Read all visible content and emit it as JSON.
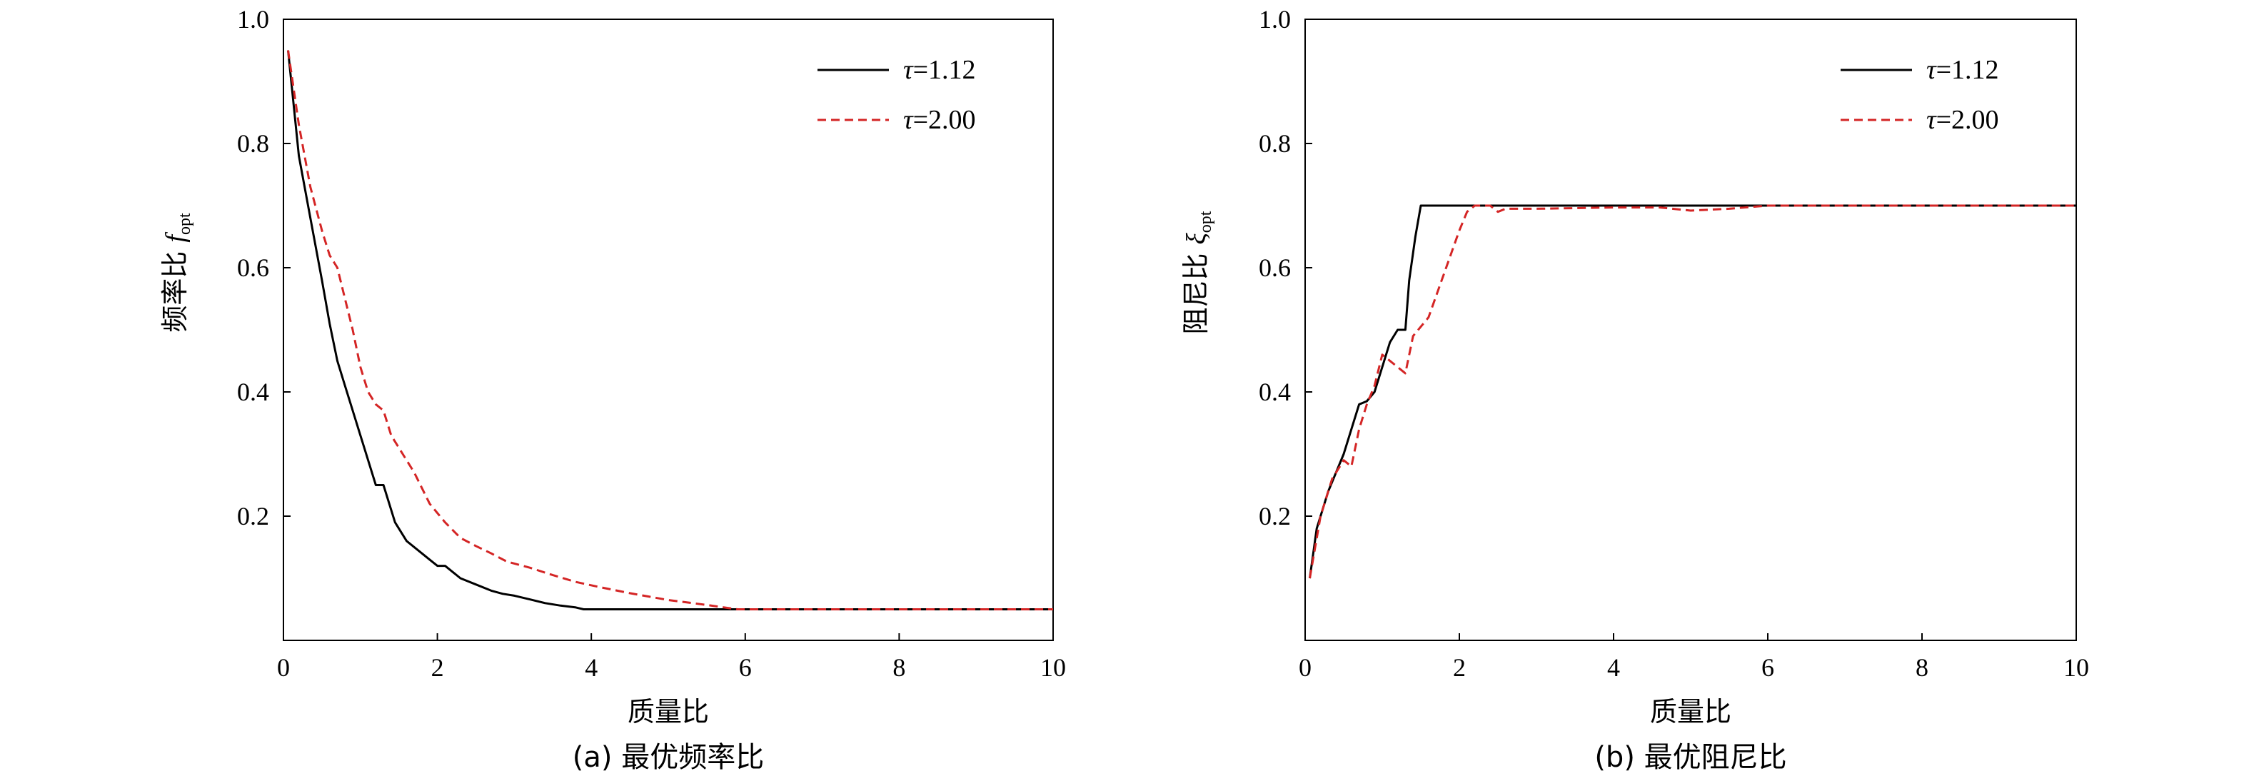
{
  "chart_data": [
    {
      "type": "line",
      "caption": "(a) 最优频率比",
      "xlabel": "质量比",
      "ylabel_text": "频率比",
      "ylabel_symbol": "f",
      "ylabel_subscript": "opt",
      "xlim": [
        0,
        10
      ],
      "ylim": [
        0,
        1.0
      ],
      "xticks": [
        "0",
        "2",
        "4",
        "6",
        "8",
        "10"
      ],
      "yticks": [
        "0.2",
        "0.4",
        "0.6",
        "0.8",
        "1.0"
      ],
      "legend_position": "top-right",
      "series": [
        {
          "name": "τ=1.12",
          "color": "#000000",
          "style": "solid",
          "x": [
            0.06,
            0.2,
            0.35,
            0.5,
            0.6,
            0.7,
            0.8,
            0.9,
            1.0,
            1.1,
            1.2,
            1.3,
            1.45,
            1.6,
            1.8,
            1.9,
            2.0,
            2.1,
            2.3,
            2.5,
            2.7,
            2.85,
            3.0,
            3.2,
            3.4,
            3.6,
            3.8,
            3.9,
            4.2,
            6.0,
            8.0,
            10.0
          ],
          "y": [
            0.95,
            0.78,
            0.68,
            0.58,
            0.51,
            0.45,
            0.41,
            0.37,
            0.33,
            0.29,
            0.25,
            0.25,
            0.19,
            0.16,
            0.14,
            0.13,
            0.12,
            0.12,
            0.1,
            0.09,
            0.08,
            0.075,
            0.072,
            0.066,
            0.06,
            0.056,
            0.053,
            0.05,
            0.05,
            0.05,
            0.05,
            0.05
          ]
        },
        {
          "name": "τ=2.00",
          "color": "#d42525",
          "style": "dashed",
          "x": [
            0.06,
            0.2,
            0.35,
            0.5,
            0.6,
            0.7,
            0.8,
            0.9,
            1.0,
            1.1,
            1.2,
            1.3,
            1.4,
            1.55,
            1.7,
            1.9,
            2.1,
            2.3,
            2.5,
            2.7,
            2.9,
            3.2,
            3.5,
            3.8,
            4.1,
            4.5,
            5.0,
            5.5,
            5.9,
            7.0,
            8.0,
            10.0
          ],
          "y": [
            0.95,
            0.83,
            0.73,
            0.66,
            0.62,
            0.6,
            0.55,
            0.5,
            0.44,
            0.4,
            0.38,
            0.37,
            0.33,
            0.3,
            0.27,
            0.22,
            0.19,
            0.165,
            0.152,
            0.14,
            0.127,
            0.117,
            0.105,
            0.094,
            0.086,
            0.076,
            0.065,
            0.057,
            0.05,
            0.05,
            0.05,
            0.05
          ]
        }
      ]
    },
    {
      "type": "line",
      "caption": "(b) 最优阻尼比",
      "xlabel": "质量比",
      "ylabel_text": "阻尼比",
      "ylabel_symbol": "ξ",
      "ylabel_subscript": "opt",
      "xlim": [
        0,
        10
      ],
      "ylim": [
        0,
        1.0
      ],
      "xticks": [
        "0",
        "2",
        "4",
        "6",
        "8",
        "10"
      ],
      "yticks": [
        "0.2",
        "0.4",
        "0.6",
        "0.8",
        "1.0"
      ],
      "legend_position": "top-right",
      "series": [
        {
          "name": "τ=1.12",
          "color": "#000000",
          "style": "solid",
          "x": [
            0.06,
            0.15,
            0.3,
            0.4,
            0.5,
            0.6,
            0.7,
            0.8,
            0.9,
            1.0,
            1.1,
            1.2,
            1.3,
            1.35,
            1.43,
            1.5,
            2.0,
            4.0,
            6.0,
            8.0,
            10.0
          ],
          "y": [
            0.1,
            0.18,
            0.24,
            0.27,
            0.3,
            0.34,
            0.38,
            0.385,
            0.4,
            0.44,
            0.48,
            0.5,
            0.5,
            0.58,
            0.65,
            0.7,
            0.7,
            0.7,
            0.7,
            0.7,
            0.7
          ]
        },
        {
          "name": "τ=2.00",
          "color": "#d42525",
          "style": "dashed",
          "x": [
            0.06,
            0.2,
            0.35,
            0.5,
            0.6,
            0.7,
            0.8,
            0.9,
            1.0,
            1.2,
            1.3,
            1.4,
            1.6,
            1.8,
            2.0,
            2.1,
            2.2,
            2.4,
            2.5,
            2.6,
            3.0,
            4.0,
            4.6,
            5.0,
            5.5,
            6.0,
            7.0,
            8.0,
            10.0
          ],
          "y": [
            0.1,
            0.2,
            0.26,
            0.29,
            0.28,
            0.34,
            0.38,
            0.41,
            0.46,
            0.44,
            0.43,
            0.49,
            0.52,
            0.59,
            0.66,
            0.69,
            0.7,
            0.7,
            0.69,
            0.695,
            0.695,
            0.697,
            0.697,
            0.692,
            0.695,
            0.7,
            0.7,
            0.7,
            0.7
          ]
        }
      ]
    }
  ]
}
